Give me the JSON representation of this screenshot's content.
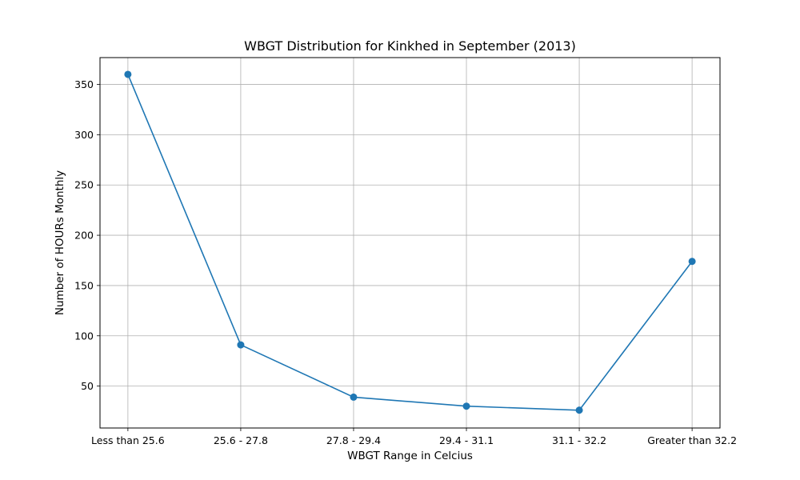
{
  "chart_data": {
    "type": "line",
    "title": "WBGT Distribution for Kinkhed in September (2013)",
    "xlabel": "WBGT Range in Celcius",
    "ylabel": "Number of HOURs Monthly",
    "categories": [
      "Less than 25.6",
      "25.6 - 27.8",
      "27.8 - 29.4",
      "29.4 - 31.1",
      "31.1 - 32.2",
      "Greater than 32.2"
    ],
    "series": [
      {
        "values": [
          360,
          91,
          39,
          30,
          26,
          174
        ],
        "color": "#1f77b4"
      }
    ],
    "ylim": [
      8.3,
      376.7
    ],
    "yticks": [
      50,
      100,
      150,
      200,
      250,
      300,
      350
    ],
    "grid": true,
    "markers": "circle"
  }
}
